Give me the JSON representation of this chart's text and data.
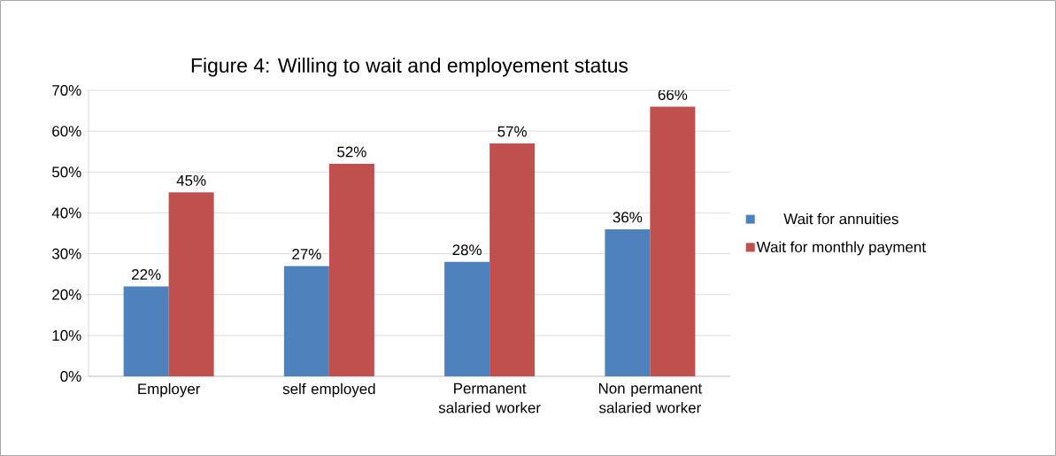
{
  "chart_data": {
    "type": "bar",
    "title": "Figure 4: Willing to wait and employement status",
    "categories": [
      "Employer",
      "self employed",
      "Permanent salaried worker",
      "Non permanent salaried worker"
    ],
    "series": [
      {
        "name": "Wait for annuities",
        "color": "#4f81bd",
        "values": [
          22,
          27,
          28,
          36
        ],
        "value_labels": [
          "22%",
          "27%",
          "28%",
          "36%"
        ]
      },
      {
        "name": "Wait for monthly payment",
        "color": "#c0504d",
        "values": [
          45,
          52,
          57,
          66
        ],
        "value_labels": [
          "45%",
          "52%",
          "57%",
          "66%"
        ]
      }
    ],
    "ylim": [
      0,
      70
    ],
    "yticks": [
      {
        "value": 0,
        "label": "0%"
      },
      {
        "value": 10,
        "label": "10%"
      },
      {
        "value": 20,
        "label": "20%"
      },
      {
        "value": 30,
        "label": "30%"
      },
      {
        "value": 40,
        "label": "40%"
      },
      {
        "value": 50,
        "label": "50%"
      },
      {
        "value": 60,
        "label": "60%"
      },
      {
        "value": 70,
        "label": "70%"
      }
    ],
    "grid": "y",
    "legend": "right"
  }
}
